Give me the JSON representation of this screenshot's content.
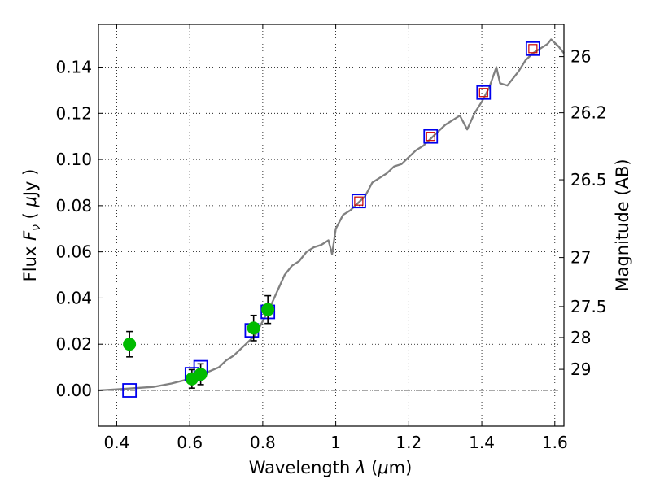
{
  "chart_data": {
    "type": "line",
    "title": "",
    "xlabel": {
      "pre": "Wavelength ",
      "sym": "λ",
      "paren_open": " (",
      "mu": "μ",
      "unit": "m)"
    },
    "ylabel": {
      "pre": "Flux ",
      "sym": "F",
      "sub": "ν",
      "paren_open": " ( ",
      "mu": "μ",
      "unit": "Jy )"
    },
    "y2label": "Magnitude (AB)",
    "xlim": [
      0.35,
      1.625
    ],
    "ylim": [
      -0.0155,
      0.1585
    ],
    "grid": true,
    "x_ticks": [
      0.4,
      0.6,
      0.8,
      1.0,
      1.2,
      1.4,
      1.6
    ],
    "x_tick_labels": [
      "0.4",
      "0.6",
      "0.8",
      "1",
      "1.2",
      "1.4",
      "1.6"
    ],
    "y_ticks": [
      0.0,
      0.02,
      0.04,
      0.06,
      0.08,
      0.1,
      0.12,
      0.14
    ],
    "y_tick_labels": [
      "0.00",
      "0.02",
      "0.04",
      "0.06",
      "0.08",
      "0.10",
      "0.12",
      "0.14"
    ],
    "y2_ticks": [
      {
        "label": "26",
        "mag": 26
      },
      {
        "label": "26.2",
        "mag": 26.2
      },
      {
        "label": "26.5",
        "mag": 26.5
      },
      {
        "label": "27",
        "mag": 27
      },
      {
        "label": "27.5",
        "mag": 27.5
      },
      {
        "label": "28",
        "mag": 28
      },
      {
        "label": "29",
        "mag": 29
      }
    ],
    "series": [
      {
        "kind": "line",
        "color": "#808080",
        "x": [
          0.35,
          0.4,
          0.45,
          0.5,
          0.55,
          0.6,
          0.62,
          0.65,
          0.68,
          0.7,
          0.72,
          0.74,
          0.76,
          0.78,
          0.8,
          0.82,
          0.84,
          0.86,
          0.88,
          0.9,
          0.92,
          0.94,
          0.96,
          0.98,
          0.99,
          1.0,
          1.02,
          1.04,
          1.06,
          1.08,
          1.1,
          1.12,
          1.14,
          1.16,
          1.18,
          1.2,
          1.22,
          1.24,
          1.26,
          1.28,
          1.3,
          1.32,
          1.34,
          1.36,
          1.38,
          1.4,
          1.42,
          1.44,
          1.45,
          1.47,
          1.48,
          1.5,
          1.52,
          1.54,
          1.56,
          1.58,
          1.59,
          1.61,
          1.625
        ],
        "y": [
          0.0,
          0.0005,
          0.001,
          0.0015,
          0.003,
          0.005,
          0.006,
          0.008,
          0.01,
          0.013,
          0.015,
          0.018,
          0.021,
          0.024,
          0.03,
          0.036,
          0.043,
          0.05,
          0.054,
          0.056,
          0.06,
          0.062,
          0.063,
          0.065,
          0.059,
          0.07,
          0.076,
          0.078,
          0.081,
          0.084,
          0.09,
          0.092,
          0.094,
          0.097,
          0.098,
          0.101,
          0.104,
          0.106,
          0.109,
          0.112,
          0.115,
          0.117,
          0.119,
          0.113,
          0.12,
          0.125,
          0.131,
          0.14,
          0.133,
          0.132,
          0.134,
          0.138,
          0.143,
          0.146,
          0.148,
          0.15,
          0.152,
          0.149,
          0.146
        ]
      },
      {
        "kind": "observed",
        "marker": "circle",
        "color": "#00bb00",
        "x": [
          0.435,
          0.606,
          0.63,
          0.775,
          0.814
        ],
        "y": [
          0.02,
          0.005,
          0.007,
          0.027,
          0.035
        ],
        "yerr": [
          0.0055,
          0.004,
          0.0045,
          0.0055,
          0.006
        ]
      },
      {
        "kind": "model",
        "marker": "square",
        "color": "#0000ee",
        "x": [
          0.435,
          0.606,
          0.63,
          0.77,
          0.814,
          1.063,
          1.26,
          1.405,
          1.54
        ],
        "y": [
          0.0,
          0.007,
          0.01,
          0.026,
          0.034,
          0.082,
          0.11,
          0.129,
          0.148
        ]
      },
      {
        "kind": "model-inner",
        "marker": "square",
        "color": "#cc0000",
        "x": [
          1.063,
          1.26,
          1.405,
          1.54
        ],
        "y": [
          0.082,
          0.11,
          0.129,
          0.148
        ]
      }
    ]
  }
}
